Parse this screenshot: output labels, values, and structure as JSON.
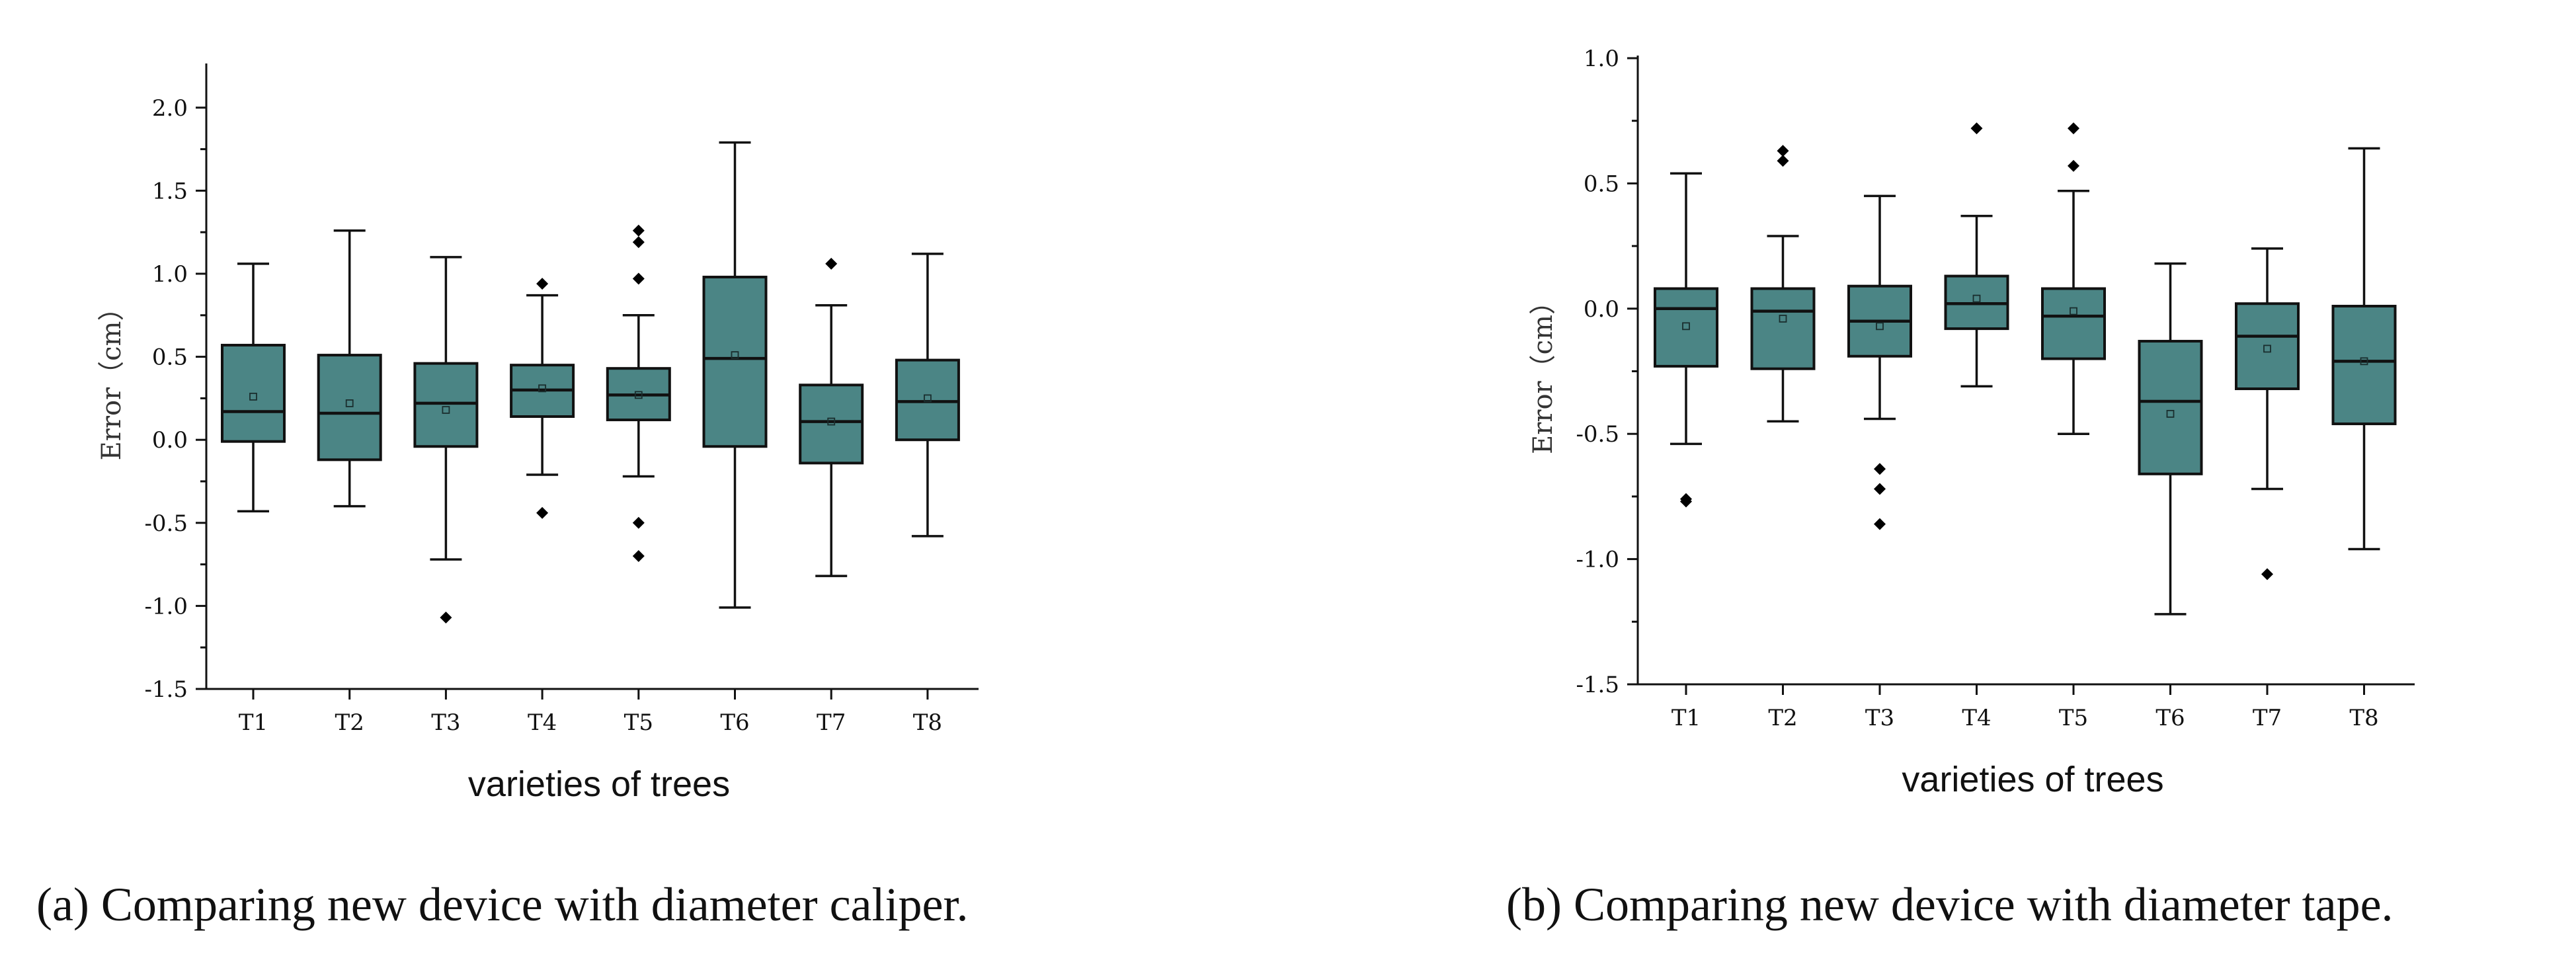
{
  "chart_data": [
    {
      "type": "box",
      "panel": "a",
      "xlabel": "varieties of trees",
      "ylabel": "Error（cm）",
      "ylim": [
        -1.5,
        2.25
      ],
      "yticks": [
        "-1.5",
        "-1.0",
        "-0.5",
        "0.0",
        "0.5",
        "1.0",
        "1.5",
        "2.0"
      ],
      "categories": [
        "T1",
        "T2",
        "T3",
        "T4",
        "T5",
        "T6",
        "T7",
        "T8"
      ],
      "boxes": [
        {
          "min": -0.43,
          "q1": -0.01,
          "median": 0.17,
          "q3": 0.57,
          "max": 1.06,
          "mean": 0.26,
          "outliers": []
        },
        {
          "min": -0.4,
          "q1": -0.12,
          "median": 0.16,
          "q3": 0.51,
          "max": 1.26,
          "mean": 0.22,
          "outliers": []
        },
        {
          "min": -0.72,
          "q1": -0.04,
          "median": 0.22,
          "q3": 0.46,
          "max": 1.1,
          "mean": 0.18,
          "outliers": [
            -1.07
          ]
        },
        {
          "min": -0.21,
          "q1": 0.14,
          "median": 0.3,
          "q3": 0.45,
          "max": 0.87,
          "mean": 0.31,
          "outliers": [
            0.94,
            -0.44
          ]
        },
        {
          "min": -0.22,
          "q1": 0.12,
          "median": 0.27,
          "q3": 0.43,
          "max": 0.75,
          "mean": 0.27,
          "outliers": [
            1.26,
            1.19,
            0.97,
            -0.5,
            -0.7
          ]
        },
        {
          "min": -1.01,
          "q1": -0.04,
          "median": 0.49,
          "q3": 0.98,
          "max": 1.79,
          "mean": 0.51,
          "outliers": []
        },
        {
          "min": -0.82,
          "q1": -0.14,
          "median": 0.11,
          "q3": 0.33,
          "max": 0.81,
          "mean": 0.11,
          "outliers": [
            1.06
          ]
        },
        {
          "min": -0.58,
          "q1": 0.0,
          "median": 0.23,
          "q3": 0.48,
          "max": 1.12,
          "mean": 0.25,
          "outliers": []
        }
      ],
      "caption": "(a) Comparing new device with diameter caliper."
    },
    {
      "type": "box",
      "panel": "b",
      "xlabel": "varieties of trees",
      "ylabel": "Error（cm）",
      "ylim": [
        -1.5,
        1.0
      ],
      "yticks": [
        "-1.5",
        "-1.0",
        "-0.5",
        "0.0",
        "0.5",
        "1.0"
      ],
      "categories": [
        "T1",
        "T2",
        "T3",
        "T4",
        "T5",
        "T6",
        "T7",
        "T8"
      ],
      "boxes": [
        {
          "min": -0.54,
          "q1": -0.23,
          "median": 0.0,
          "q3": 0.08,
          "max": 0.54,
          "mean": -0.07,
          "outliers": [
            -0.76,
            -0.77
          ]
        },
        {
          "min": -0.45,
          "q1": -0.24,
          "median": -0.01,
          "q3": 0.08,
          "max": 0.29,
          "mean": -0.04,
          "outliers": [
            0.63,
            0.59
          ]
        },
        {
          "min": -0.44,
          "q1": -0.19,
          "median": -0.05,
          "q3": 0.09,
          "max": 0.45,
          "mean": -0.07,
          "outliers": [
            -0.64,
            -0.72,
            -0.86
          ]
        },
        {
          "min": -0.31,
          "q1": -0.08,
          "median": 0.02,
          "q3": 0.13,
          "max": 0.37,
          "mean": 0.04,
          "outliers": [
            0.72
          ]
        },
        {
          "min": -0.5,
          "q1": -0.2,
          "median": -0.03,
          "q3": 0.08,
          "max": 0.47,
          "mean": -0.01,
          "outliers": [
            0.72,
            0.57
          ]
        },
        {
          "min": -1.22,
          "q1": -0.66,
          "median": -0.37,
          "q3": -0.13,
          "max": 0.18,
          "mean": -0.42,
          "outliers": []
        },
        {
          "min": -0.72,
          "q1": -0.32,
          "median": -0.11,
          "q3": 0.02,
          "max": 0.24,
          "mean": -0.16,
          "outliers": [
            -1.06
          ]
        },
        {
          "min": -0.96,
          "q1": -0.46,
          "median": -0.21,
          "q3": 0.01,
          "max": 0.64,
          "mean": -0.21,
          "outliers": []
        }
      ],
      "caption": "(b) Comparing new device with diameter tape."
    }
  ]
}
